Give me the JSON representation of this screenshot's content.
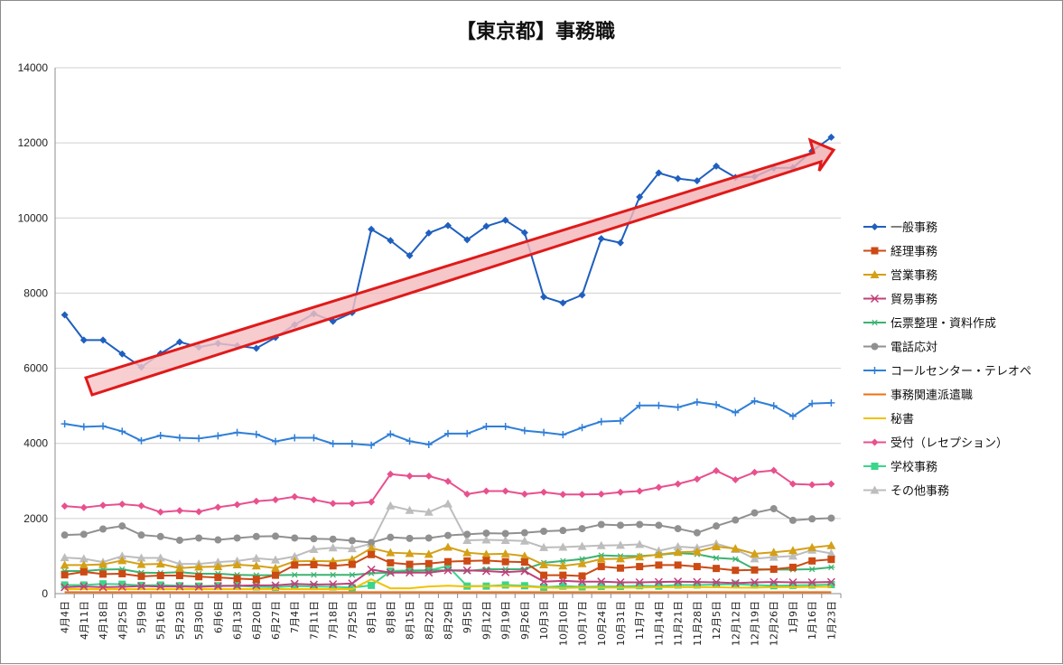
{
  "chart_data": {
    "type": "line",
    "title": "【東京都】事務職",
    "xlabel": "",
    "ylabel": "",
    "ylim": [
      0,
      14000
    ],
    "yticks": [
      0,
      2000,
      4000,
      6000,
      8000,
      10000,
      12000,
      14000
    ],
    "grid": "horizontal",
    "legend": "right",
    "categories": [
      "4月4日",
      "4月11日",
      "4月18日",
      "4月25日",
      "5月9日",
      "5月16日",
      "5月23日",
      "5月30日",
      "6月6日",
      "6月13日",
      "6月20日",
      "6月27日",
      "7月4日",
      "7月11日",
      "7月18日",
      "7月25日",
      "8月1日",
      "8月8日",
      "8月15日",
      "8月22日",
      "8月29日",
      "9月5日",
      "9月12日",
      "9月19日",
      "9月26日",
      "10月3日",
      "10月10日",
      "10月17日",
      "10月24日",
      "10月31日",
      "11月7日",
      "11月14日",
      "11月21日",
      "11月28日",
      "12月5日",
      "12月12日",
      "12月19日",
      "12月26日",
      "1月9日",
      "1月16日",
      "1月23日"
    ],
    "series": [
      {
        "name": "一般事務",
        "color": "#1f5fbf",
        "marker": "diamond",
        "values": [
          7420,
          6750,
          6750,
          6380,
          6030,
          6390,
          6700,
          6560,
          6660,
          6600,
          6530,
          6820,
          7160,
          7450,
          7250,
          7480,
          9700,
          9400,
          9000,
          9600,
          9800,
          9420,
          9780,
          9940,
          9610,
          7900,
          7740,
          7950,
          9450,
          9340,
          10560,
          11200,
          11050,
          10990,
          11380,
          11080,
          11100,
          11330,
          11340,
          11780,
          12150
        ]
      },
      {
        "name": "経理事務",
        "color": "#cc4a14",
        "marker": "square",
        "values": [
          500,
          580,
          520,
          530,
          460,
          480,
          480,
          450,
          430,
          400,
          380,
          490,
          760,
          770,
          740,
          780,
          1040,
          820,
          780,
          800,
          850,
          870,
          880,
          850,
          840,
          490,
          490,
          470,
          720,
          680,
          720,
          760,
          760,
          720,
          670,
          620,
          630,
          650,
          700,
          870,
          910
        ]
      },
      {
        "name": "営業事務",
        "color": "#d4a017",
        "marker": "triangle",
        "values": [
          760,
          760,
          780,
          880,
          780,
          790,
          680,
          710,
          720,
          770,
          740,
          680,
          860,
          870,
          860,
          910,
          1210,
          1090,
          1070,
          1050,
          1240,
          1090,
          1050,
          1060,
          1000,
          770,
          740,
          800,
          920,
          930,
          980,
          1040,
          1100,
          1120,
          1250,
          1200,
          1060,
          1100,
          1150,
          1230,
          1280
        ]
      },
      {
        "name": "貿易事務",
        "color": "#c0407a",
        "marker": "x",
        "values": [
          170,
          190,
          170,
          180,
          200,
          190,
          190,
          180,
          200,
          210,
          220,
          220,
          260,
          240,
          250,
          270,
          640,
          560,
          560,
          560,
          620,
          620,
          600,
          570,
          600,
          320,
          340,
          320,
          320,
          300,
          300,
          310,
          320,
          310,
          300,
          280,
          300,
          310,
          300,
          300,
          310
        ]
      },
      {
        "name": "伝票整理・資料作成",
        "color": "#3cb371",
        "marker": "star",
        "values": [
          600,
          600,
          640,
          650,
          560,
          550,
          570,
          530,
          530,
          500,
          490,
          490,
          500,
          500,
          500,
          500,
          540,
          560,
          600,
          620,
          620,
          600,
          650,
          650,
          650,
          820,
          870,
          920,
          1020,
          1000,
          1000,
          1030,
          1080,
          1050,
          950,
          920,
          650,
          640,
          640,
          650,
          700
        ]
      },
      {
        "name": "電話応対",
        "color": "#909090",
        "marker": "circle",
        "values": [
          1560,
          1580,
          1720,
          1800,
          1560,
          1520,
          1420,
          1480,
          1430,
          1480,
          1520,
          1530,
          1480,
          1460,
          1450,
          1410,
          1360,
          1500,
          1470,
          1480,
          1550,
          1580,
          1610,
          1600,
          1620,
          1660,
          1680,
          1730,
          1840,
          1820,
          1840,
          1820,
          1730,
          1620,
          1800,
          1960,
          2150,
          2260,
          1950,
          1990,
          2010
        ]
      },
      {
        "name": "コールセンター・テレオペ",
        "color": "#2f7fd8",
        "marker": "plus",
        "values": [
          4520,
          4440,
          4460,
          4320,
          4070,
          4210,
          4150,
          4130,
          4200,
          4290,
          4240,
          4050,
          4150,
          4150,
          3990,
          3990,
          3950,
          4250,
          4060,
          3970,
          4260,
          4260,
          4450,
          4450,
          4340,
          4290,
          4230,
          4420,
          4580,
          4600,
          5010,
          5010,
          4960,
          5100,
          5030,
          4820,
          5130,
          5000,
          4720,
          5060,
          5080
        ]
      },
      {
        "name": "事務関連派遣職",
        "color": "#f07010",
        "marker": "none",
        "values": [
          40,
          40,
          40,
          40,
          40,
          40,
          40,
          40,
          40,
          40,
          40,
          40,
          40,
          40,
          40,
          40,
          40,
          40,
          40,
          40,
          40,
          40,
          40,
          40,
          40,
          40,
          40,
          40,
          40,
          40,
          40,
          40,
          40,
          40,
          40,
          40,
          40,
          40,
          40,
          40,
          40
        ]
      },
      {
        "name": "秘書",
        "color": "#f2c200",
        "marker": "none",
        "values": [
          120,
          120,
          120,
          120,
          120,
          120,
          120,
          120,
          120,
          120,
          120,
          120,
          120,
          120,
          120,
          120,
          380,
          140,
          140,
          190,
          210,
          190,
          200,
          200,
          190,
          160,
          150,
          160,
          160,
          160,
          160,
          170,
          170,
          170,
          170,
          160,
          160,
          170,
          170,
          180,
          180
        ]
      },
      {
        "name": "受付（レセプション）",
        "color": "#e8508e",
        "marker": "diamond",
        "values": [
          2330,
          2290,
          2350,
          2380,
          2340,
          2170,
          2210,
          2180,
          2300,
          2370,
          2460,
          2500,
          2580,
          2500,
          2400,
          2400,
          2440,
          3180,
          3130,
          3130,
          2990,
          2650,
          2730,
          2730,
          2650,
          2700,
          2640,
          2640,
          2650,
          2700,
          2730,
          2830,
          2920,
          3050,
          3270,
          3030,
          3230,
          3280,
          2920,
          2900,
          2920
        ]
      },
      {
        "name": "学校事務",
        "color": "#3ad68a",
        "marker": "square",
        "values": [
          230,
          230,
          260,
          250,
          220,
          230,
          210,
          200,
          210,
          210,
          180,
          170,
          200,
          190,
          180,
          160,
          220,
          600,
          620,
          620,
          730,
          200,
          200,
          230,
          210,
          170,
          200,
          180,
          190,
          190,
          210,
          200,
          230,
          230,
          240,
          250,
          230,
          210,
          220,
          230,
          240
        ]
      },
      {
        "name": "その他事務",
        "color": "#bdbdbd",
        "marker": "triangle",
        "values": [
          960,
          930,
          840,
          1000,
          950,
          950,
          790,
          790,
          840,
          870,
          940,
          900,
          990,
          1180,
          1220,
          1200,
          1330,
          2340,
          2220,
          2170,
          2390,
          1420,
          1430,
          1420,
          1400,
          1230,
          1240,
          1260,
          1280,
          1290,
          1310,
          1140,
          1250,
          1220,
          1330,
          1180,
          930,
          970,
          1000,
          1160,
          1070
        ]
      }
    ]
  }
}
